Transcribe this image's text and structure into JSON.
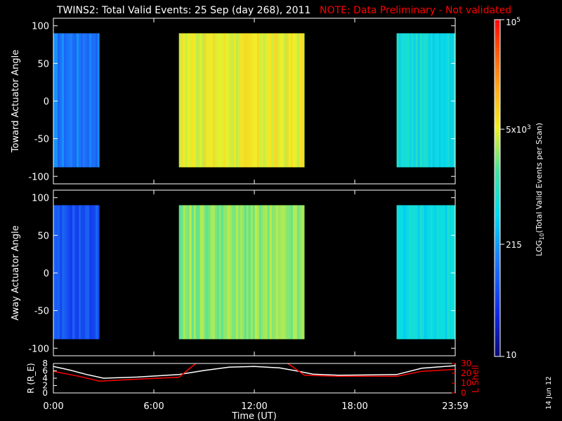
{
  "header": {
    "title": "TWINS2: Total Valid Events: 25 Sep (day 268), 2011",
    "note": "NOTE: Data Preliminary - Not validated"
  },
  "stamp": "14 Jun 12",
  "colors": {
    "background": "#000000",
    "axis": "#ffffff",
    "note": "#ff0000",
    "r_line": "#ffffff",
    "lshell_line": "#ff0000"
  },
  "chart_data": [
    {
      "type": "heatmap",
      "title": "",
      "xlabel": "",
      "ylabel": "Toward Actuator Angle",
      "xlim": [
        0,
        24
      ],
      "ylim": [
        -110,
        110
      ],
      "yticks": [
        100,
        50,
        0,
        -50,
        -100
      ],
      "ytick_labels": [
        "100",
        "50",
        "0",
        "-50",
        "-100"
      ],
      "xticks": [
        0,
        6,
        12,
        18,
        24
      ],
      "scale": "log",
      "data_angle_range": [
        -88,
        90
      ],
      "blocks": [
        {
          "start": 0.0,
          "end": 2.75,
          "level": 0.28
        },
        {
          "start": 7.5,
          "end": 15.0,
          "level": 0.68
        },
        {
          "start": 20.5,
          "end": 24.0,
          "level": 0.45
        }
      ]
    },
    {
      "type": "heatmap",
      "title": "",
      "xlabel": "",
      "ylabel": "Away Actuator Angle",
      "xlim": [
        0,
        24
      ],
      "ylim": [
        -110,
        110
      ],
      "yticks": [
        100,
        50,
        0,
        -50,
        -100
      ],
      "ytick_labels": [
        "100",
        "50",
        "0",
        "-50",
        "-100"
      ],
      "xticks": [
        0,
        6,
        12,
        18,
        24
      ],
      "scale": "log",
      "data_angle_range": [
        -88,
        90
      ],
      "blocks": [
        {
          "start": 0.0,
          "end": 2.75,
          "level": 0.2
        },
        {
          "start": 7.5,
          "end": 15.0,
          "level": 0.6
        },
        {
          "start": 20.5,
          "end": 24.0,
          "level": 0.44
        }
      ]
    },
    {
      "type": "line",
      "title": "",
      "xlabel": "Time (UT)",
      "ylabel_left": "R (R_E)",
      "ylabel_right": "L Shell",
      "ylim_left": [
        0,
        8
      ],
      "ylim_right": [
        0,
        30
      ],
      "yticks_left": [
        "8",
        "6",
        "4",
        "2",
        "0"
      ],
      "yticks_right": [
        "30",
        "20",
        "10",
        "0"
      ],
      "xlim": [
        0,
        24
      ],
      "xtick_labels": [
        "0:00",
        "6:00",
        "12:00",
        "18:00",
        "23:59"
      ],
      "series": [
        {
          "axis": "left",
          "x": [
            0,
            1,
            2,
            3,
            5,
            7.5,
            9,
            10.5,
            12,
            13.5,
            14.5,
            15.5,
            17,
            19,
            20.5,
            22,
            24
          ],
          "y": [
            7.2,
            6.2,
            5.0,
            4.0,
            4.3,
            5.0,
            6.1,
            7.0,
            7.2,
            6.8,
            6.0,
            5.1,
            4.8,
            4.9,
            5.0,
            6.7,
            7.4
          ]
        },
        {
          "axis": "right",
          "x": [
            0,
            1.5,
            2.75,
            5,
            7.5,
            8.5,
            9.0,
            13.5,
            14.0,
            15.0,
            17,
            20.5,
            22,
            24
          ],
          "y": [
            22,
            17,
            12,
            14,
            16,
            30,
            33,
            33,
            30,
            18,
            17,
            17,
            22,
            24
          ]
        }
      ]
    },
    {
      "type": "colorbar",
      "scale": "log",
      "range": [
        10,
        100000
      ],
      "label": "LOG10(Total Valid Events per Scan)",
      "label_base": "LOG",
      "label_sub": "10",
      "label_rest": "(Total Valid Events per Scan)",
      "ticks": [
        {
          "value": 100000,
          "base": "10",
          "sup": "5",
          "tail": ""
        },
        {
          "value": 5000,
          "base": "5x10",
          "sup": "3",
          "tail": ""
        },
        {
          "value": 215,
          "base": "215",
          "sup": "",
          "tail": ""
        },
        {
          "value": 10,
          "base": "10",
          "sup": "",
          "tail": ""
        }
      ]
    }
  ]
}
